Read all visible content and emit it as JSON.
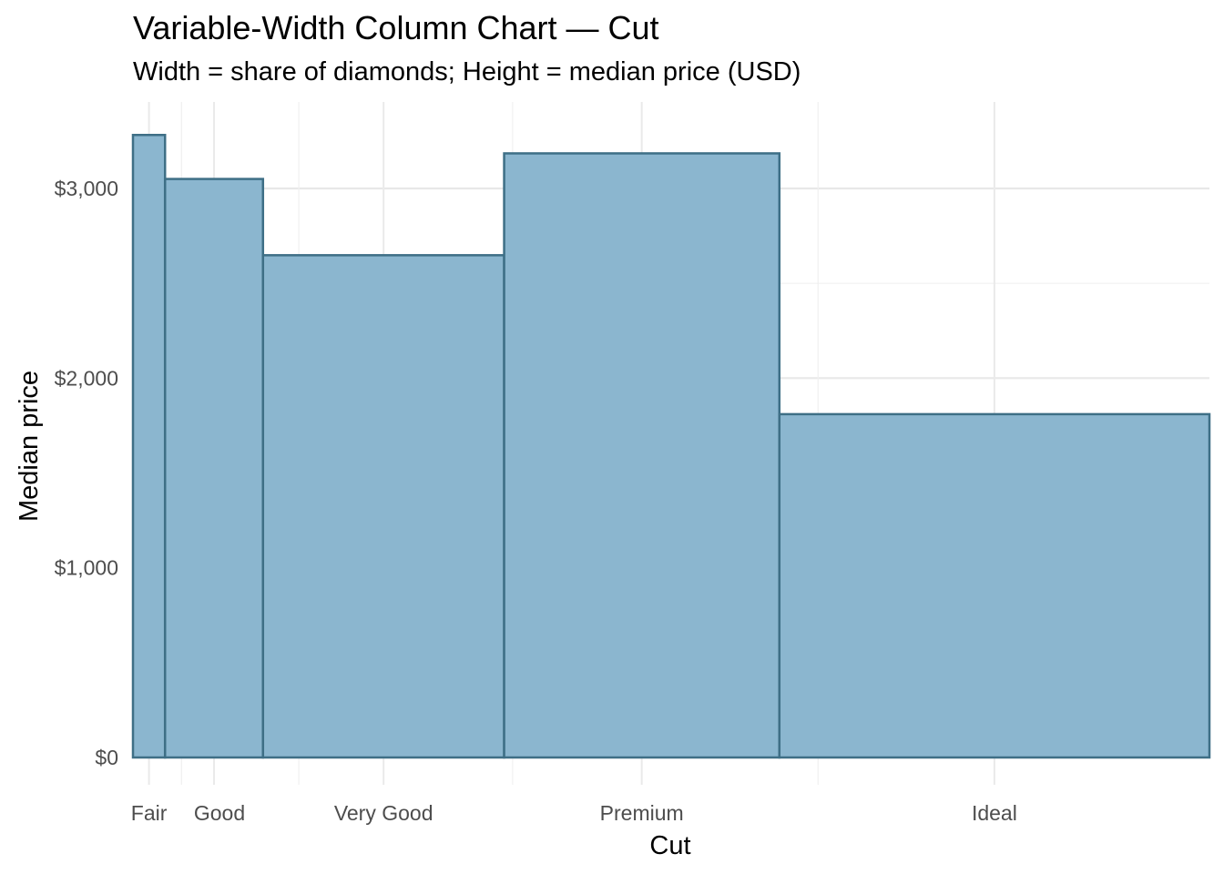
{
  "chart_data": {
    "type": "bar",
    "title": "Variable-Width Column Chart — Cut",
    "subtitle": "Width = share of diamonds; Height = median price (USD)",
    "xlabel": "Cut",
    "ylabel": "Median price",
    "categories": [
      "Fair",
      "Good",
      "Very Good",
      "Premium",
      "Ideal"
    ],
    "share_of_diamonds": [
      0.0298,
      0.091,
      0.224,
      0.2557,
      0.3995
    ],
    "values": [
      3282,
      3050,
      2648,
      3185,
      1810
    ],
    "ylim": [
      0,
      3300
    ],
    "y_ticks": [
      0,
      1000,
      2000,
      3000
    ],
    "y_tick_labels": [
      "$0",
      "$1,000",
      "$2,000",
      "$3,000"
    ],
    "grid": true,
    "legend": "none",
    "bar_fill": "#8BB6CF",
    "bar_stroke": "#3E6F86"
  }
}
